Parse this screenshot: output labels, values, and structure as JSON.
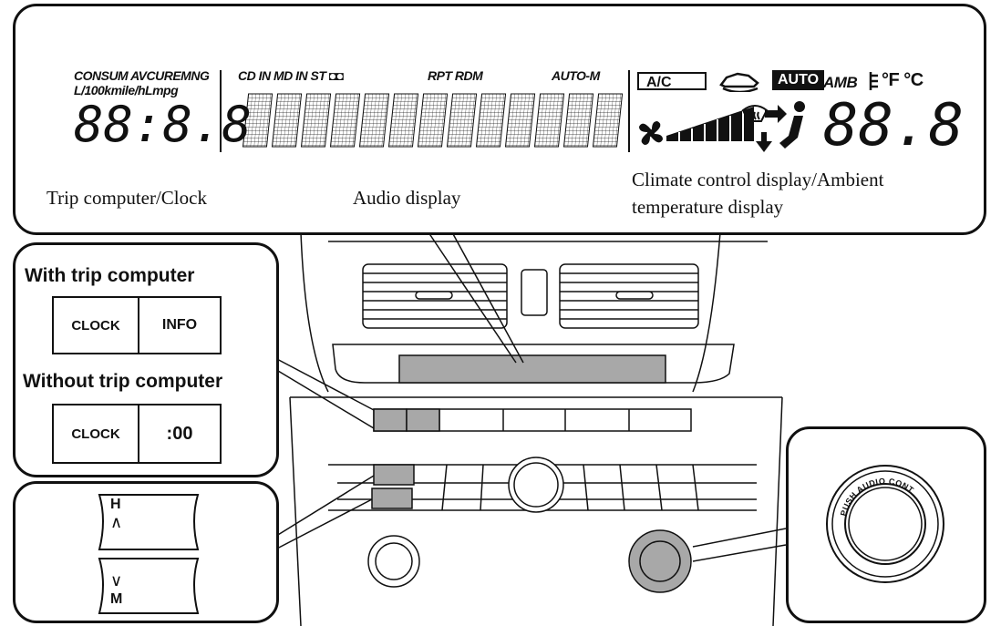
{
  "lcd": {
    "consum_label": "CONSUM AVCUREMNG",
    "units_label": "L/100kmile/hLmpg",
    "clock_digits": "88:8.8",
    "cd_in_label": "CD IN MD IN ST ◘◘",
    "rpt_rdm_label": "RPT RDM",
    "auto_m_label": "AUTO-M",
    "ac_label": "A/C",
    "auto_badge": "AUTO",
    "amb_label": "AMB",
    "temp_unit_label": "°F °C",
    "temp_digits": "88.8"
  },
  "captions": {
    "trip_clock": "Trip computer/Clock",
    "audio": "Audio display",
    "climate_line1": "Climate control display/Ambient",
    "climate_line2": "temperature display"
  },
  "buttons": {
    "with_trip_title": "With trip computer",
    "clock_label_1": "CLOCK",
    "info_label": "INFO",
    "without_trip_title": "Without trip computer",
    "clock_label_2": "CLOCK",
    "zero_label": ":00"
  },
  "hm_switch": {
    "h_label": "H",
    "up_arrow": "∧",
    "down_arrow": "∨",
    "m_label": "M"
  },
  "knob_label": "PUSH AUDIO CONT",
  "colors": {
    "line": "#111111",
    "highlight": "#a8a8a8",
    "background": "#ffffff"
  },
  "icons": [
    "fan-icon",
    "recirculation-car-icon",
    "defroster-icon",
    "airflow-person-icon",
    "thermometer-icon"
  ]
}
